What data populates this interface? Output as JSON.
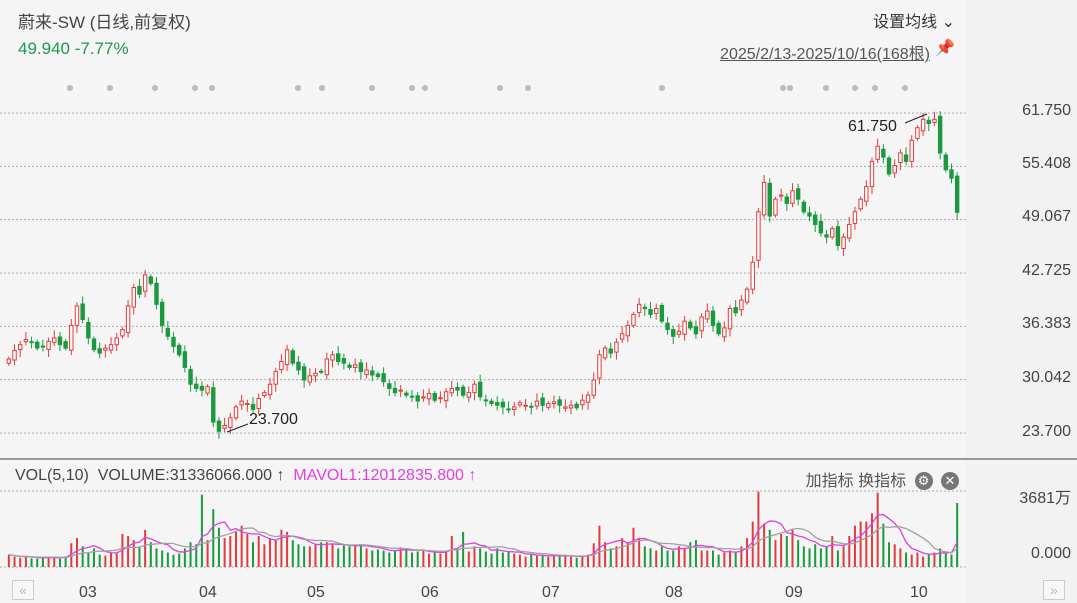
{
  "header": {
    "title": "蔚来-SW (日线,前复权)",
    "quote": "49.940 -7.77%",
    "ma_settings": "设置均线 ⌄",
    "range": "2025/2/13-2025/10/16(168根)",
    "pin_icon": "pin-icon"
  },
  "price_axis": [
    "61.750",
    "55.408",
    "49.067",
    "42.725",
    "36.383",
    "30.042",
    "23.700"
  ],
  "annotations": {
    "high": "61.750",
    "low": "23.700"
  },
  "volume_panel": {
    "name": "VOL(5,10)",
    "volume": "VOLUME:31336066.000 ↑",
    "mavol": "MAVOL1:12012835.800 ↑",
    "add": "加指标",
    "switch": "换指标",
    "axis_top": "3681万",
    "axis_bottom": "0.000"
  },
  "months": [
    "03",
    "04",
    "05",
    "06",
    "07",
    "08",
    "09",
    "10"
  ],
  "colors": {
    "up": "#e03c3c",
    "down": "#1a9a3e",
    "ma5": "#e040e0",
    "ma10": "#a0a0a0"
  },
  "chart_data": {
    "type": "candlestick",
    "price_range": [
      23.7,
      61.75
    ],
    "volume_max": 3681,
    "close": [
      32.5,
      33.5,
      34.2,
      34.8,
      34.5,
      33.8,
      34.0,
      34.6,
      35.0,
      34.2,
      33.8,
      36.5,
      38.8,
      37.2,
      35.0,
      33.6,
      33.2,
      33.8,
      34.2,
      35.0,
      36.0,
      38.8,
      41.0,
      40.2,
      42.5,
      41.5,
      39.0,
      36.5,
      35.2,
      34.0,
      33.0,
      31.5,
      29.5,
      29.0,
      28.8,
      29.2,
      25.0,
      23.9,
      24.6,
      25.5,
      26.8,
      27.5,
      27.2,
      26.5,
      27.8,
      28.5,
      29.5,
      31.0,
      32.2,
      33.6,
      32.0,
      31.2,
      30.0,
      30.5,
      30.8,
      31.0,
      32.5,
      33.0,
      32.2,
      32.0,
      31.5,
      31.8,
      31.0,
      31.2,
      30.6,
      30.4,
      29.8,
      29.0,
      28.5,
      28.8,
      28.2,
      28.0,
      27.5,
      28.0,
      28.4,
      27.6,
      27.9,
      28.6,
      29.0,
      28.8,
      28.2,
      28.5,
      29.5,
      28.0,
      27.6,
      27.2,
      27.0,
      26.8,
      26.5,
      26.8,
      27.3,
      27.0,
      26.8,
      27.5,
      27.0,
      27.2,
      27.4,
      27.0,
      26.8,
      27.0,
      26.7,
      27.6,
      28.2,
      30.0,
      33.0,
      33.8,
      33.2,
      34.5,
      35.5,
      36.5,
      37.8,
      39.0,
      38.5,
      37.8,
      38.5,
      37.0,
      36.0,
      35.2,
      35.8,
      37.0,
      36.2,
      35.5,
      37.5,
      38.2,
      36.5,
      35.5,
      36.2,
      38.5,
      38.0,
      39.5,
      40.8,
      44.0,
      50.0,
      53.5,
      49.5,
      51.5,
      52.0,
      51.0,
      52.5,
      51.5,
      50.0,
      49.5,
      48.5,
      47.5,
      47.0,
      48.0,
      46.0,
      47.0,
      48.5,
      50.0,
      51.5,
      53.0,
      56.0,
      57.8,
      56.5,
      54.5,
      55.5,
      57.0,
      56.0,
      58.5,
      60.0,
      61.0,
      60.5,
      61.0,
      57.0,
      55.0,
      54.0,
      49.94
    ],
    "volume": [
      600,
      500,
      450,
      500,
      420,
      400,
      450,
      500,
      480,
      400,
      500,
      1150,
      1400,
      1000,
      700,
      900,
      600,
      550,
      700,
      650,
      1600,
      1500,
      1300,
      1000,
      1800,
      1200,
      900,
      800,
      700,
      600,
      650,
      900,
      1200,
      1100,
      3500,
      1300,
      2800,
      1900,
      1400,
      1500,
      1700,
      2000,
      1600,
      1200,
      1500,
      1100,
      1400,
      1300,
      1800,
      1700,
      1300,
      1100,
      1000,
      1000,
      1100,
      1200,
      1200,
      1100,
      900,
      1050,
      1000,
      1100,
      1100,
      900,
      800,
      850,
      800,
      700,
      800,
      950,
      900,
      700,
      750,
      800,
      650,
      700,
      650,
      750,
      1500,
      900,
      1700,
      750,
      1000,
      900,
      750,
      650,
      900,
      700,
      750,
      650,
      600,
      500,
      600,
      550,
      550,
      500,
      550,
      520,
      600,
      500,
      450,
      520,
      600,
      1150,
      2000,
      1200,
      900,
      1000,
      1400,
      1200,
      1900,
      1400,
      1000,
      900,
      800,
      1000,
      800,
      800,
      1000,
      900,
      1200,
      1300,
      800,
      800,
      800,
      600,
      700,
      800,
      700,
      1000,
      1400,
      2200,
      3650,
      2100,
      1800,
      1300,
      1600,
      1500,
      1800,
      1300,
      1000,
      900,
      1100,
      900,
      1000,
      1500,
      800,
      1000,
      1500,
      2000,
      2200,
      2200,
      2600,
      3600,
      2100,
      1200,
      1100,
      900,
      700,
      600,
      700,
      500,
      600,
      700,
      900,
      700,
      600,
      3100
    ]
  }
}
